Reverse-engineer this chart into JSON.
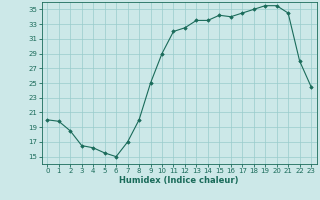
{
  "x": [
    0,
    1,
    2,
    3,
    4,
    5,
    6,
    7,
    8,
    9,
    10,
    11,
    12,
    13,
    14,
    15,
    16,
    17,
    18,
    19,
    20,
    21,
    22,
    23
  ],
  "y": [
    20.0,
    19.8,
    18.5,
    16.5,
    16.2,
    15.5,
    15.0,
    17.0,
    20.0,
    25.0,
    29.0,
    32.0,
    32.5,
    33.5,
    33.5,
    34.2,
    34.0,
    34.5,
    35.0,
    35.5,
    35.5,
    34.5,
    28.0,
    24.5
  ],
  "xlabel": "Humidex (Indice chaleur)",
  "xlim": [
    -0.5,
    23.5
  ],
  "ylim": [
    14,
    36
  ],
  "yticks": [
    15,
    17,
    19,
    21,
    23,
    25,
    27,
    29,
    31,
    33,
    35
  ],
  "xticks": [
    0,
    1,
    2,
    3,
    4,
    5,
    6,
    7,
    8,
    9,
    10,
    11,
    12,
    13,
    14,
    15,
    16,
    17,
    18,
    19,
    20,
    21,
    22,
    23
  ],
  "line_color": "#1a6b5a",
  "marker_color": "#1a6b5a",
  "bg_color": "#cce8e8",
  "grid_color": "#99cccc",
  "xlabel_fontsize": 6.0,
  "tick_fontsize": 5.0
}
